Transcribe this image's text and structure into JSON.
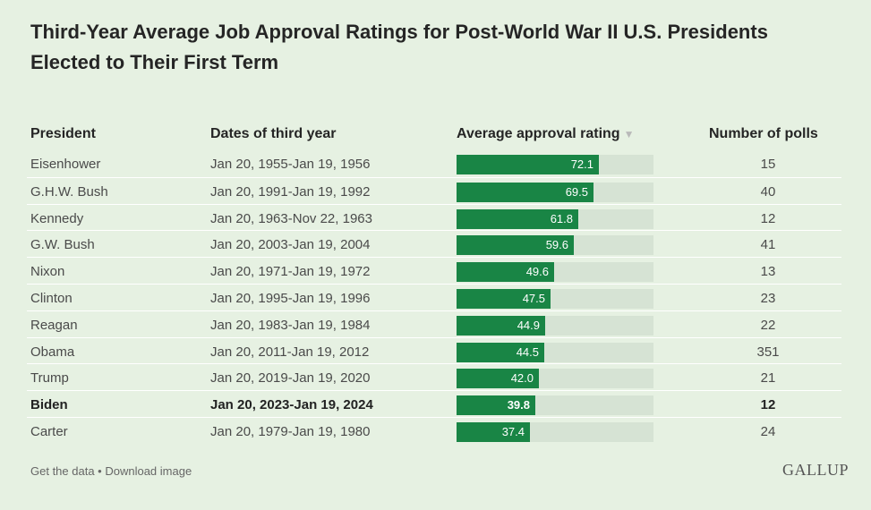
{
  "title": "Third-Year Average Job Approval Ratings for Post-World War II U.S. Presidents Elected to Their First Term",
  "columns": {
    "president": "President",
    "dates": "Dates of third year",
    "approval": "Average approval rating",
    "approval_sort_icon": "▼",
    "polls": "Number of polls"
  },
  "chart_data": {
    "type": "table",
    "title": "Third-Year Average Job Approval Ratings for Post-World War II U.S. Presidents Elected to Their First Term",
    "scale_max": 100,
    "bar_color": "#198545",
    "track_color": "#d6e3d4",
    "rows": [
      {
        "president": "Eisenhower",
        "dates": "Jan 20, 1955-Jan 19, 1956",
        "approval": 72.1,
        "approval_label": "72.1",
        "polls": "15",
        "highlight": false
      },
      {
        "president": "G.H.W. Bush",
        "dates": "Jan 20, 1991-Jan 19, 1992",
        "approval": 69.5,
        "approval_label": "69.5",
        "polls": "40",
        "highlight": false
      },
      {
        "president": "Kennedy",
        "dates": "Jan 20, 1963-Nov 22, 1963",
        "approval": 61.8,
        "approval_label": "61.8",
        "polls": "12",
        "highlight": false
      },
      {
        "president": "G.W. Bush",
        "dates": "Jan 20, 2003-Jan 19, 2004",
        "approval": 59.6,
        "approval_label": "59.6",
        "polls": "41",
        "highlight": false
      },
      {
        "president": "Nixon",
        "dates": "Jan 20, 1971-Jan 19, 1972",
        "approval": 49.6,
        "approval_label": "49.6",
        "polls": "13",
        "highlight": false
      },
      {
        "president": "Clinton",
        "dates": "Jan 20, 1995-Jan 19, 1996",
        "approval": 47.5,
        "approval_label": "47.5",
        "polls": "23",
        "highlight": false
      },
      {
        "president": "Reagan",
        "dates": "Jan 20, 1983-Jan 19, 1984",
        "approval": 44.9,
        "approval_label": "44.9",
        "polls": "22",
        "highlight": false
      },
      {
        "president": "Obama",
        "dates": "Jan 20, 2011-Jan 19, 2012",
        "approval": 44.5,
        "approval_label": "44.5",
        "polls": "351",
        "highlight": false
      },
      {
        "president": "Trump",
        "dates": "Jan 20, 2019-Jan 19, 2020",
        "approval": 42.0,
        "approval_label": "42.0",
        "polls": "21",
        "highlight": false
      },
      {
        "president": "Biden",
        "dates": "Jan 20, 2023-Jan 19, 2024",
        "approval": 39.8,
        "approval_label": "39.8",
        "polls": "12",
        "highlight": true
      },
      {
        "president": "Carter",
        "dates": "Jan 20, 1979-Jan 19, 1980",
        "approval": 37.4,
        "approval_label": "37.4",
        "polls": "24",
        "highlight": false
      }
    ]
  },
  "footer": {
    "get_data": "Get the data",
    "separator": " • ",
    "download": "Download image"
  },
  "logo": "GALLUP"
}
